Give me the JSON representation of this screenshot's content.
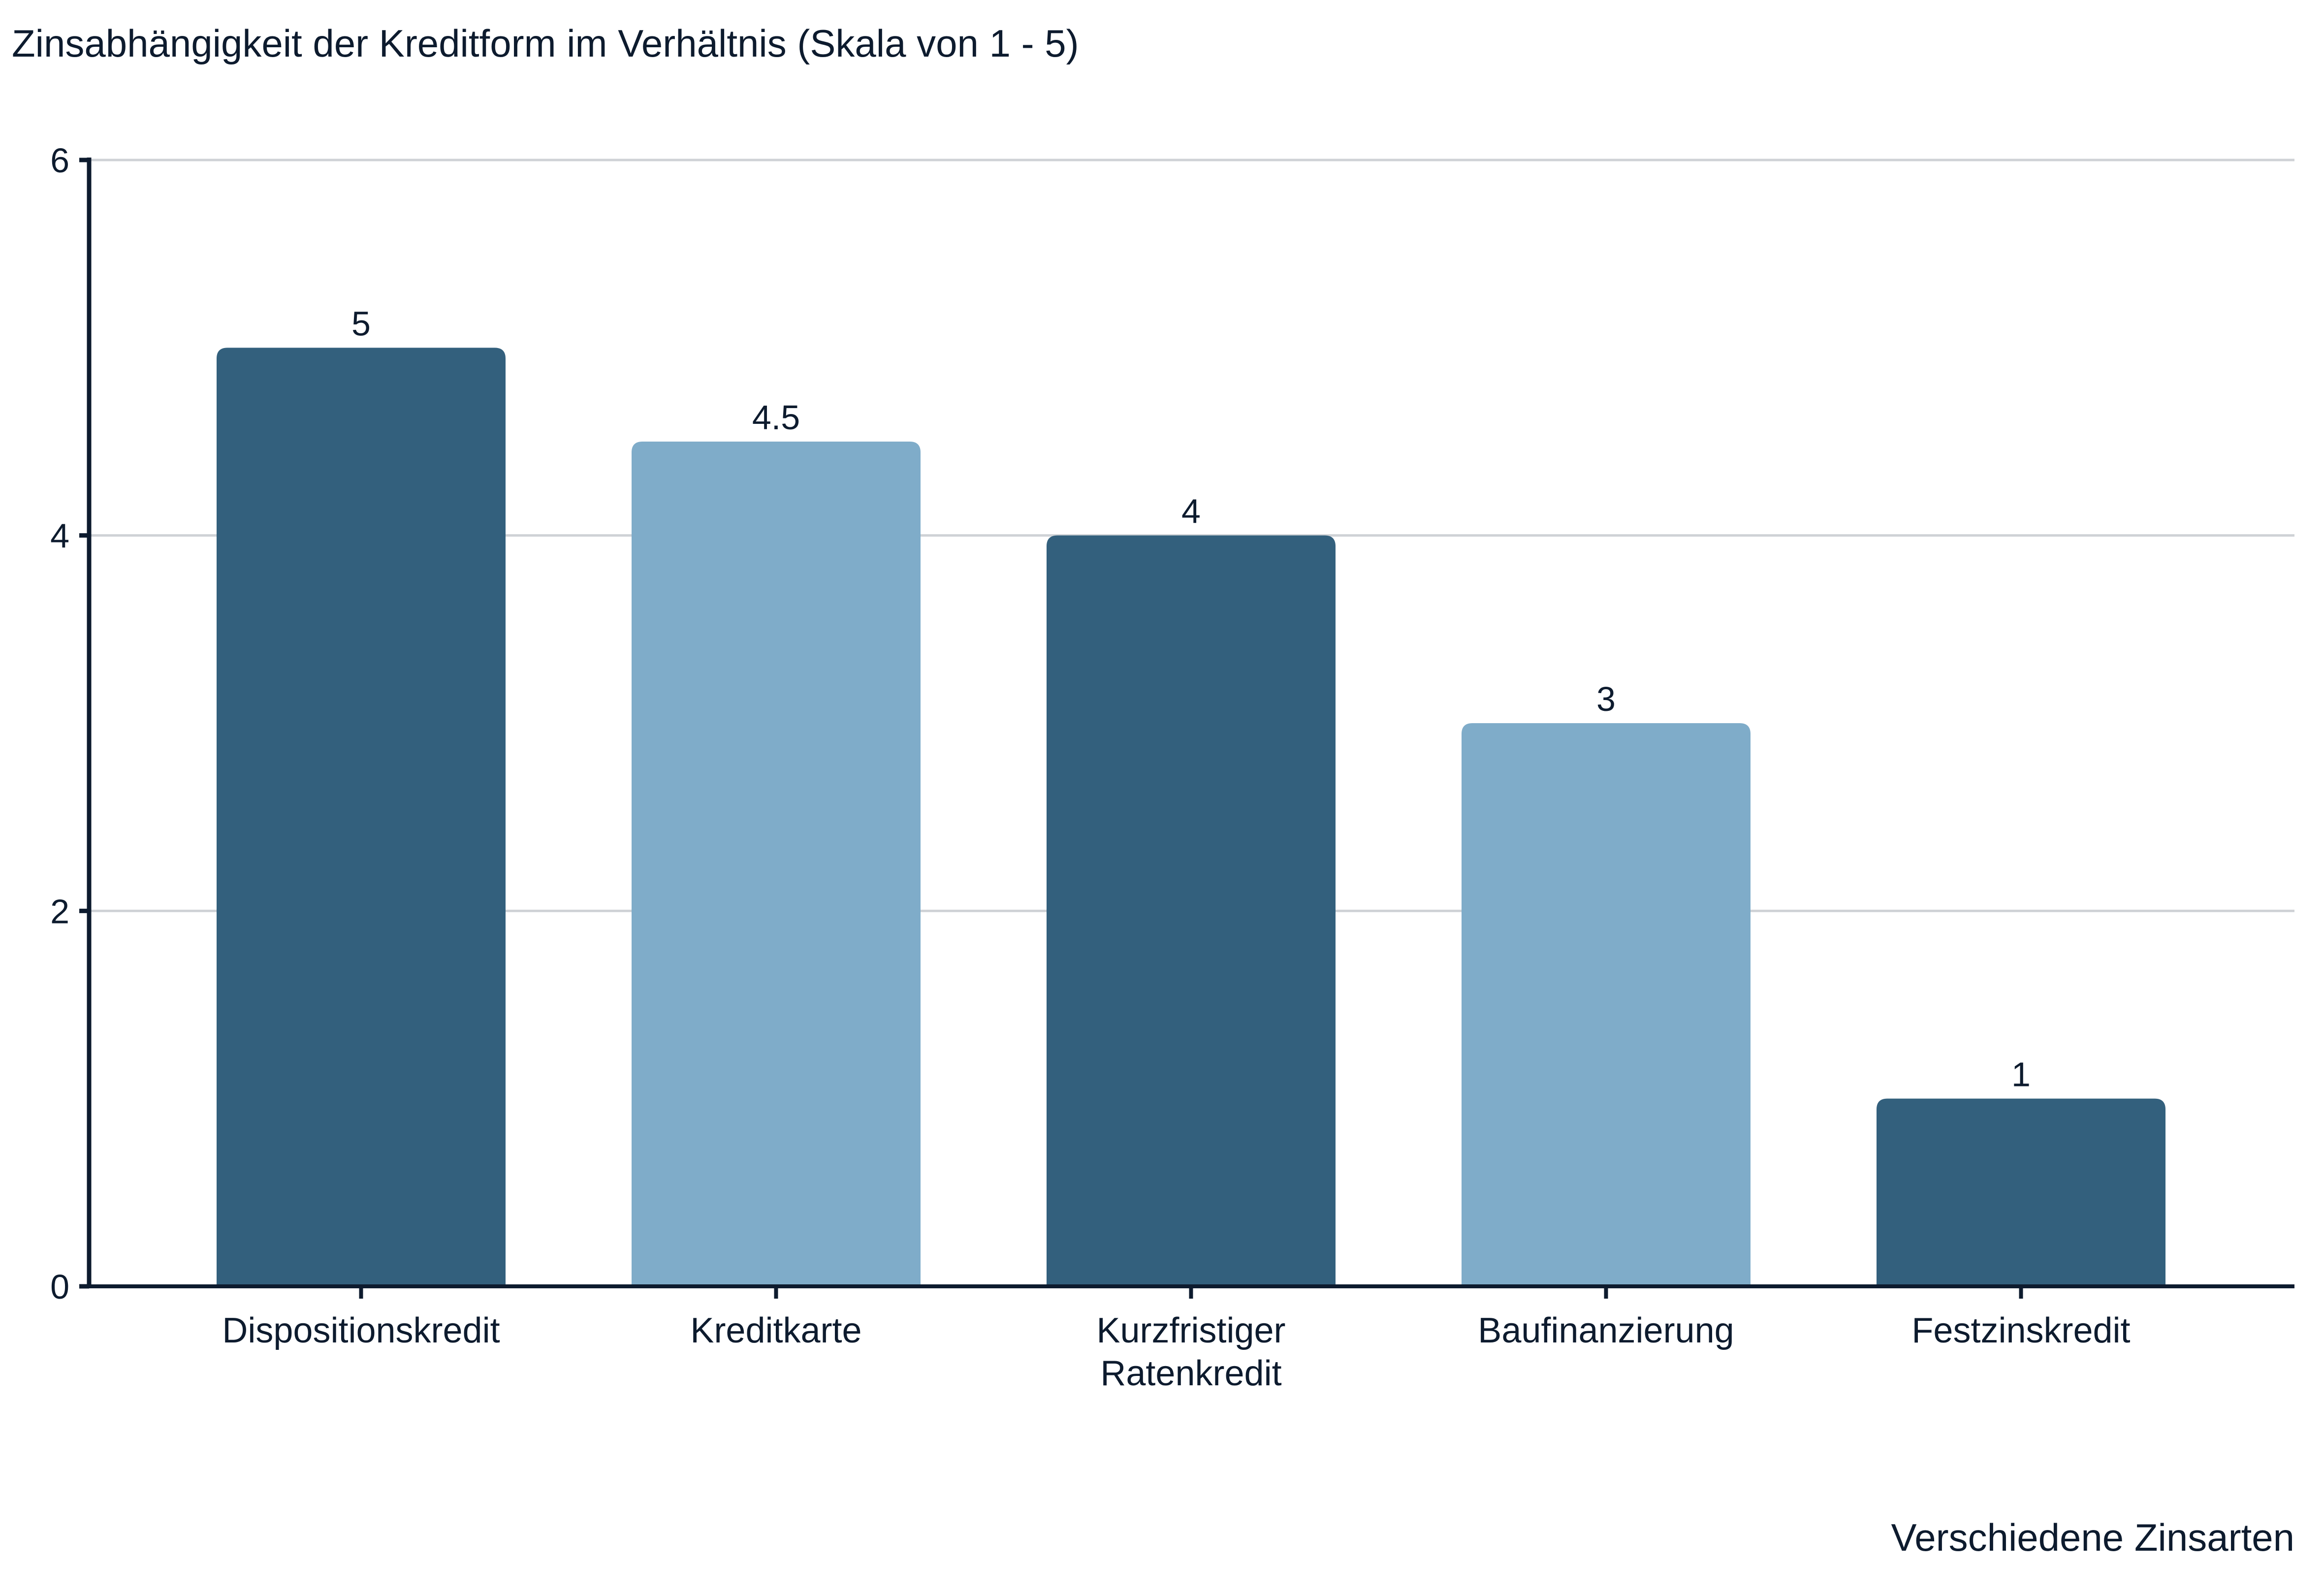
{
  "chart_data": {
    "type": "bar",
    "title": "Zinsabhängigkeit der Kreditform im Verhältnis (Skala von 1 - 5)",
    "xlabel": "Verschiedene Zinsarten",
    "ylabel": "",
    "categories": [
      [
        "Dispositionskredit"
      ],
      [
        "Kreditkarte"
      ],
      [
        "Kurzfristiger",
        "Ratenkredit"
      ],
      [
        "Baufinanzierung"
      ],
      [
        "Festzinskredit"
      ]
    ],
    "values": [
      5,
      4.5,
      4,
      3,
      1
    ],
    "data_labels": [
      "5",
      "4.5",
      "4",
      "3",
      "1"
    ],
    "bar_colors": [
      "#33607d",
      "#7facc9",
      "#33607d",
      "#7facc9",
      "#33607d"
    ],
    "ylim": [
      0,
      6
    ],
    "yticks": [
      0,
      2,
      4,
      6
    ],
    "grid": true,
    "legend": "none"
  }
}
